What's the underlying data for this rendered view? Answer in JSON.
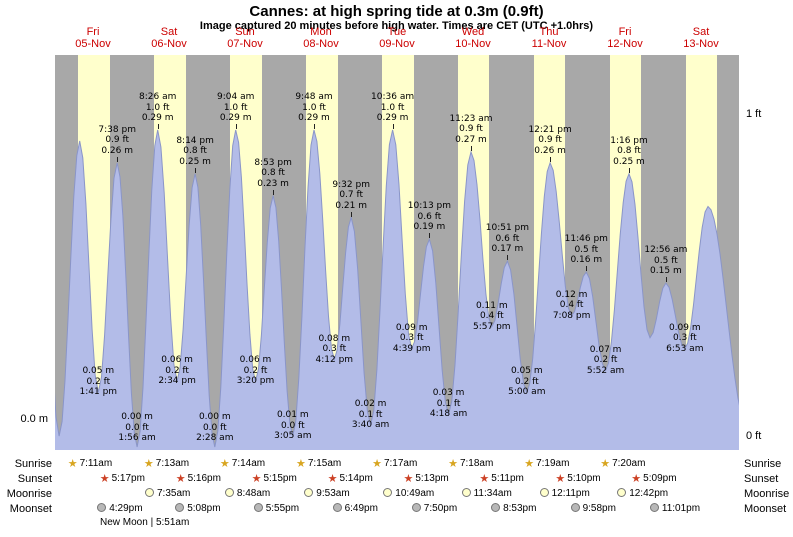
{
  "title": "Cannes: at high  spring tide at 0.3m (0.9ft)",
  "subtitle": "Image captured 20 minutes before high water. Times are CET (UTC +1.0hrs)",
  "axis": {
    "left_zero": "0.0 m",
    "right_one_ft": "1 ft",
    "right_zero_ft": "0 ft"
  },
  "colors": {
    "night_band": "#a8a8a8",
    "day_band": "#ffffcc",
    "tide_fill": "#b3bce8",
    "tide_edge": "#8a95c8",
    "day_label": "#cc0000",
    "sunrise_star": "#d8a520",
    "sunset_star": "#cc4125",
    "moonrise_disc": "#ffffcc",
    "moonset_disc": "#b8b8b8"
  },
  "chart_data": {
    "type": "area",
    "title": "Tide height curve for Cannes, 05-Nov to 13-Nov",
    "ylim_m": [
      0,
      0.36
    ],
    "y_axis": {
      "left_ticks": [
        "0.0 m"
      ],
      "right_ticks": [
        "1 ft",
        "0 ft"
      ],
      "left_unit": "m",
      "right_unit": "ft"
    },
    "days": [
      {
        "dow": "Fri",
        "date": "05-Nov",
        "daylight": [
          7.18,
          17.28
        ]
      },
      {
        "dow": "Sat",
        "date": "06-Nov",
        "daylight": [
          7.22,
          17.27
        ]
      },
      {
        "dow": "Sun",
        "date": "07-Nov",
        "daylight": [
          7.23,
          17.25
        ]
      },
      {
        "dow": "Mon",
        "date": "08-Nov",
        "daylight": [
          7.25,
          17.23
        ]
      },
      {
        "dow": "Tue",
        "date": "09-Nov",
        "daylight": [
          7.28,
          17.22
        ]
      },
      {
        "dow": "Wed",
        "date": "10-Nov",
        "daylight": [
          7.3,
          17.18
        ]
      },
      {
        "dow": "Thu",
        "date": "11-Nov",
        "daylight": [
          7.32,
          17.17
        ]
      },
      {
        "dow": "Fri",
        "date": "12-Nov",
        "daylight": [
          7.33,
          17.15
        ]
      },
      {
        "dow": "Sat",
        "date": "13-Nov",
        "daylight": [
          7.35,
          17.13
        ]
      }
    ],
    "tide_events": [
      {
        "day": -1,
        "hour": 19.3,
        "m": 0.27,
        "kind": "high"
      },
      {
        "day": 0,
        "hour": 1.3,
        "m": 0.01,
        "kind": "low"
      },
      {
        "day": 0,
        "hour": 7.8,
        "m": 0.28,
        "kind": "high"
      },
      {
        "day": 0,
        "hour": 13.68,
        "m": 0.05,
        "kind": "low",
        "time_label": "1:41 pm",
        "ft_label": "0.2 ft",
        "m_label": "0.05 m"
      },
      {
        "day": 0,
        "hour": 19.63,
        "m": 0.26,
        "kind": "high",
        "time_label": "7:38 pm",
        "ft_label": "0.9 ft",
        "m_label": "0.26 m"
      },
      {
        "day": 1,
        "hour": 1.93,
        "m": 0.0,
        "kind": "low",
        "time_label": "1:56 am",
        "ft_label": "0.0 ft",
        "m_label": "0.00 m"
      },
      {
        "day": 1,
        "hour": 8.43,
        "m": 0.29,
        "kind": "high",
        "time_label": "8:26 am",
        "ft_label": "1.0 ft",
        "m_label": "0.29 m"
      },
      {
        "day": 1,
        "hour": 14.57,
        "m": 0.06,
        "kind": "low",
        "time_label": "2:34 pm",
        "ft_label": "0.2 ft",
        "m_label": "0.06 m"
      },
      {
        "day": 1,
        "hour": 20.23,
        "m": 0.25,
        "kind": "high",
        "time_label": "8:14 pm",
        "ft_label": "0.8 ft",
        "m_label": "0.25 m"
      },
      {
        "day": 2,
        "hour": 2.47,
        "m": 0.0,
        "kind": "low",
        "time_label": "2:28 am",
        "ft_label": "0.0 ft",
        "m_label": "0.00 m"
      },
      {
        "day": 2,
        "hour": 9.07,
        "m": 0.29,
        "kind": "high",
        "time_label": "9:04 am",
        "ft_label": "1.0 ft",
        "m_label": "0.29 m"
      },
      {
        "day": 2,
        "hour": 15.33,
        "m": 0.06,
        "kind": "low",
        "time_label": "3:20 pm",
        "ft_label": "0.2 ft",
        "m_label": "0.06 m"
      },
      {
        "day": 2,
        "hour": 20.88,
        "m": 0.23,
        "kind": "high",
        "time_label": "8:53 pm",
        "ft_label": "0.8 ft",
        "m_label": "0.23 m"
      },
      {
        "day": 3,
        "hour": 3.08,
        "m": 0.01,
        "kind": "low",
        "time_label": "3:05 am",
        "ft_label": "0.0 ft",
        "m_label": "0.01 m"
      },
      {
        "day": 3,
        "hour": 9.8,
        "m": 0.29,
        "kind": "high",
        "time_label": "9:48 am",
        "ft_label": "1.0 ft",
        "m_label": "0.29 m"
      },
      {
        "day": 3,
        "hour": 16.2,
        "m": 0.08,
        "kind": "low",
        "time_label": "4:12 pm",
        "ft_label": "0.3 ft",
        "m_label": "0.08 m"
      },
      {
        "day": 3,
        "hour": 21.53,
        "m": 0.21,
        "kind": "high",
        "time_label": "9:32 pm",
        "ft_label": "0.7 ft",
        "m_label": "0.21 m"
      },
      {
        "day": 4,
        "hour": 3.67,
        "m": 0.02,
        "kind": "low",
        "time_label": "3:40 am",
        "ft_label": "0.1 ft",
        "m_label": "0.02 m"
      },
      {
        "day": 4,
        "hour": 10.6,
        "m": 0.29,
        "kind": "high",
        "time_label": "10:36 am",
        "ft_label": "1.0 ft",
        "m_label": "0.29 m"
      },
      {
        "day": 4,
        "hour": 16.65,
        "m": 0.09,
        "kind": "low",
        "time_label": "4:39 pm",
        "ft_label": "0.3 ft",
        "m_label": "0.09 m"
      },
      {
        "day": 4,
        "hour": 22.22,
        "m": 0.19,
        "kind": "high",
        "time_label": "10:13 pm",
        "ft_label": "0.6 ft",
        "m_label": "0.19 m"
      },
      {
        "day": 5,
        "hour": 4.3,
        "m": 0.03,
        "kind": "low",
        "time_label": "4:18 am",
        "ft_label": "0.1 ft",
        "m_label": "0.03 m"
      },
      {
        "day": 5,
        "hour": 11.38,
        "m": 0.27,
        "kind": "high",
        "time_label": "11:23 am",
        "ft_label": "0.9 ft",
        "m_label": "0.27 m"
      },
      {
        "day": 5,
        "hour": 17.95,
        "m": 0.11,
        "kind": "low",
        "time_label": "5:57 pm",
        "ft_label": "0.4 ft",
        "m_label": "0.11 m"
      },
      {
        "day": 5,
        "hour": 22.85,
        "m": 0.17,
        "kind": "high",
        "time_label": "10:51 pm",
        "ft_label": "0.6 ft",
        "m_label": "0.17 m"
      },
      {
        "day": 6,
        "hour": 5.0,
        "m": 0.05,
        "kind": "low",
        "time_label": "5:00 am",
        "ft_label": "0.2 ft",
        "m_label": "0.05 m"
      },
      {
        "day": 6,
        "hour": 12.35,
        "m": 0.26,
        "kind": "high",
        "time_label": "12:21 pm",
        "ft_label": "0.9 ft",
        "m_label": "0.26 m"
      },
      {
        "day": 6,
        "hour": 19.13,
        "m": 0.12,
        "kind": "low",
        "time_label": "7:08 pm",
        "ft_label": "0.4 ft",
        "m_label": "0.12 m"
      },
      {
        "day": 6,
        "hour": 23.77,
        "m": 0.16,
        "kind": "high",
        "time_label": "11:46 pm",
        "ft_label": "0.5 ft",
        "m_label": "0.16 m"
      },
      {
        "day": 7,
        "hour": 5.87,
        "m": 0.07,
        "kind": "low",
        "time_label": "5:52 am",
        "ft_label": "0.2 ft",
        "m_label": "0.07 m"
      },
      {
        "day": 7,
        "hour": 13.27,
        "m": 0.25,
        "kind": "high",
        "time_label": "1:16 pm",
        "ft_label": "0.8 ft",
        "m_label": "0.25 m"
      },
      {
        "day": 7,
        "hour": 19.9,
        "m": 0.1,
        "kind": "low"
      },
      {
        "day": 8,
        "hour": 0.93,
        "m": 0.15,
        "kind": "high",
        "time_label": "12:56 am",
        "ft_label": "0.5 ft",
        "m_label": "0.15 m"
      },
      {
        "day": 8,
        "hour": 6.88,
        "m": 0.09,
        "kind": "low",
        "time_label": "6:53 am",
        "ft_label": "0.3 ft",
        "m_label": "0.09 m"
      },
      {
        "day": 8,
        "hour": 14.2,
        "m": 0.22,
        "kind": "high"
      },
      {
        "day": 9,
        "hour": 2.5,
        "m": 0.02,
        "kind": "low"
      }
    ]
  },
  "almanac": {
    "sunrise": {
      "label": "Sunrise",
      "entries": [
        {
          "day": 0,
          "time": "7:11am",
          "hour": 7.18
        },
        {
          "day": 1,
          "time": "7:13am",
          "hour": 7.22
        },
        {
          "day": 2,
          "time": "7:14am",
          "hour": 7.23
        },
        {
          "day": 3,
          "time": "7:15am",
          "hour": 7.25
        },
        {
          "day": 4,
          "time": "7:17am",
          "hour": 7.28
        },
        {
          "day": 5,
          "time": "7:18am",
          "hour": 7.3
        },
        {
          "day": 6,
          "time": "7:19am",
          "hour": 7.32
        },
        {
          "day": 7,
          "time": "7:20am",
          "hour": 7.33
        }
      ]
    },
    "sunset": {
      "label": "Sunset",
      "entries": [
        {
          "day": 0,
          "time": "5:17pm",
          "hour": 17.28
        },
        {
          "day": 1,
          "time": "5:16pm",
          "hour": 17.27
        },
        {
          "day": 2,
          "time": "5:15pm",
          "hour": 17.25
        },
        {
          "day": 3,
          "time": "5:14pm",
          "hour": 17.23
        },
        {
          "day": 4,
          "time": "5:13pm",
          "hour": 17.22
        },
        {
          "day": 5,
          "time": "5:11pm",
          "hour": 17.18
        },
        {
          "day": 6,
          "time": "5:10pm",
          "hour": 17.17
        },
        {
          "day": 7,
          "time": "5:09pm",
          "hour": 17.15
        }
      ]
    },
    "moonrise": {
      "label": "Moonrise",
      "entries": [
        {
          "day": 1,
          "time": "7:35am",
          "hour": 7.58
        },
        {
          "day": 2,
          "time": "8:48am",
          "hour": 8.8
        },
        {
          "day": 3,
          "time": "9:53am",
          "hour": 9.88
        },
        {
          "day": 4,
          "time": "10:49am",
          "hour": 10.82
        },
        {
          "day": 5,
          "time": "11:34am",
          "hour": 11.57
        },
        {
          "day": 6,
          "time": "12:11pm",
          "hour": 12.18
        },
        {
          "day": 7,
          "time": "12:42pm",
          "hour": 12.7
        }
      ]
    },
    "moonset": {
      "label": "Moonset",
      "entries": [
        {
          "day": 0,
          "time": "4:29pm",
          "hour": 16.48
        },
        {
          "day": 1,
          "time": "5:08pm",
          "hour": 17.13
        },
        {
          "day": 2,
          "time": "5:55pm",
          "hour": 17.92
        },
        {
          "day": 3,
          "time": "6:49pm",
          "hour": 18.82
        },
        {
          "day": 4,
          "time": "7:50pm",
          "hour": 19.83
        },
        {
          "day": 5,
          "time": "8:53pm",
          "hour": 20.88
        },
        {
          "day": 6,
          "time": "9:58pm",
          "hour": 21.97
        },
        {
          "day": 7,
          "time": "11:01pm",
          "hour": 23.02
        }
      ]
    },
    "new_moon": "New Moon | 5:51am"
  }
}
